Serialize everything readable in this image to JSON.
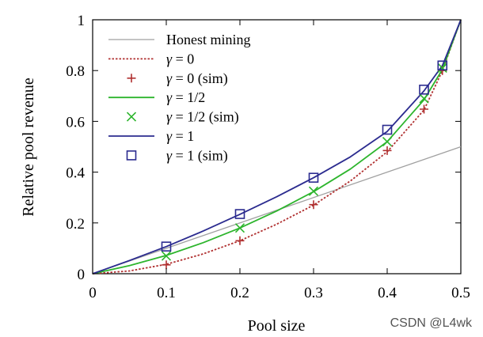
{
  "chart_data": {
    "type": "line",
    "title": "",
    "xlabel": "Pool size",
    "ylabel": "Relative pool revenue",
    "xlim": [
      0,
      0.5
    ],
    "ylim": [
      0,
      1
    ],
    "x_ticks": [
      "0",
      "0.1",
      "0.2",
      "0.3",
      "0.4",
      "0.5"
    ],
    "y_ticks": [
      "0",
      "0.2",
      "0.4",
      "0.6",
      "0.8",
      "1"
    ],
    "grid": false,
    "legend_position": "top-left",
    "series": [
      {
        "name": "Honest mining",
        "kind": "line",
        "style": "solid",
        "color": "#a0a0a0",
        "x": [
          0,
          0.5
        ],
        "y": [
          0,
          0.5
        ]
      },
      {
        "name_prefix": "γ",
        "name_suffix": " = 0",
        "kind": "line",
        "style": "dotted",
        "color": "#b03030",
        "x": [
          0,
          0.05,
          0.1,
          0.15,
          0.2,
          0.25,
          0.3,
          0.35,
          0.4,
          0.45,
          0.475,
          0.5
        ],
        "y": [
          0,
          0.011,
          0.037,
          0.078,
          0.13,
          0.195,
          0.27,
          0.365,
          0.48,
          0.645,
          0.8,
          1
        ]
      },
      {
        "name_prefix": "γ",
        "name_suffix": " = 0 (sim)",
        "kind": "marker",
        "marker": "plus",
        "color": "#b03030",
        "x": [
          0.1,
          0.2,
          0.3,
          0.4,
          0.45,
          0.475
        ],
        "y": [
          0.035,
          0.13,
          0.272,
          0.485,
          0.648,
          0.8
        ]
      },
      {
        "name_prefix": "γ",
        "name_suffix": " = 1/2",
        "kind": "line",
        "style": "solid",
        "color": "#2db52d",
        "x": [
          0,
          0.05,
          0.1,
          0.15,
          0.2,
          0.25,
          0.3,
          0.35,
          0.4,
          0.45,
          0.475,
          0.5
        ],
        "y": [
          0,
          0.032,
          0.072,
          0.122,
          0.18,
          0.247,
          0.323,
          0.412,
          0.52,
          0.685,
          0.805,
          1
        ]
      },
      {
        "name_prefix": "γ",
        "name_suffix": " = 1/2 (sim)",
        "kind": "marker",
        "marker": "cross",
        "color": "#2db52d",
        "x": [
          0.1,
          0.2,
          0.3,
          0.4,
          0.45,
          0.475
        ],
        "y": [
          0.07,
          0.18,
          0.325,
          0.52,
          0.69,
          0.81
        ]
      },
      {
        "name_prefix": "γ",
        "name_suffix": " = 1",
        "kind": "line",
        "style": "solid",
        "color": "#2b2b8f",
        "x": [
          0,
          0.05,
          0.1,
          0.15,
          0.2,
          0.25,
          0.3,
          0.35,
          0.4,
          0.45,
          0.475,
          0.5
        ],
        "y": [
          0,
          0.052,
          0.107,
          0.168,
          0.234,
          0.303,
          0.378,
          0.46,
          0.56,
          0.72,
          0.82,
          1
        ]
      },
      {
        "name_prefix": "γ",
        "name_suffix": " = 1 (sim)",
        "kind": "marker",
        "marker": "square",
        "color": "#2b2b8f",
        "x": [
          0.1,
          0.2,
          0.3,
          0.4,
          0.45,
          0.475
        ],
        "y": [
          0.107,
          0.235,
          0.378,
          0.567,
          0.725,
          0.82
        ]
      }
    ]
  },
  "watermark": "CSDN @L4wk"
}
